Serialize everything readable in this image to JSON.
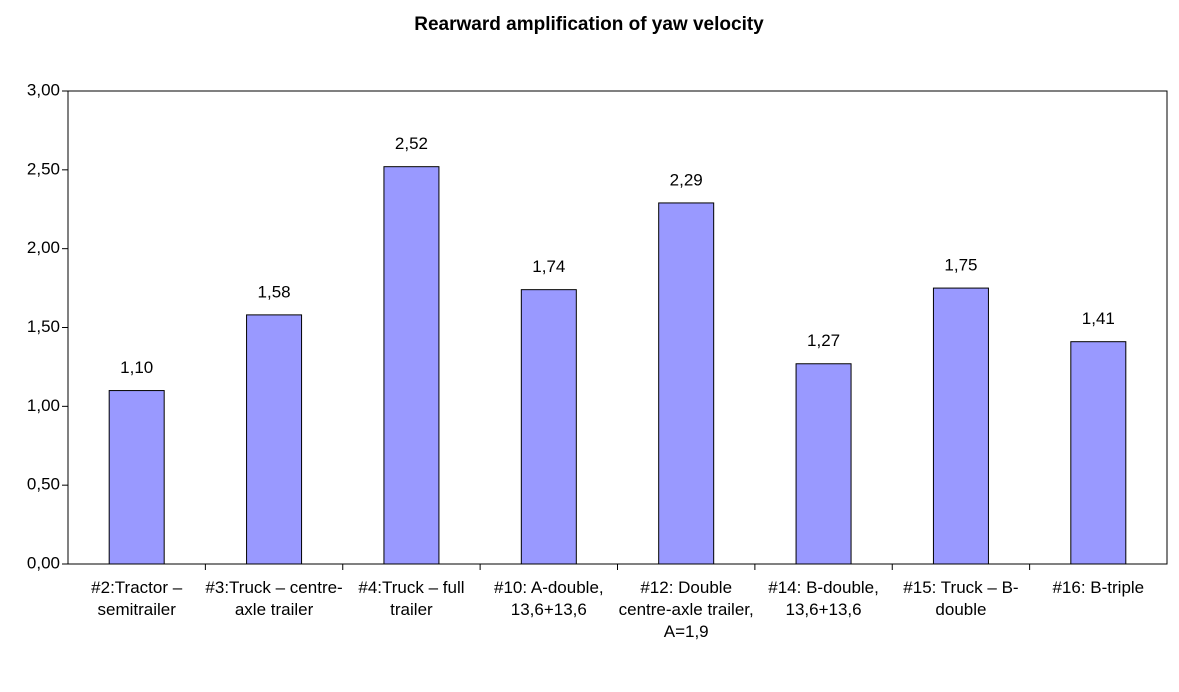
{
  "chart_data": {
    "type": "bar",
    "title": "Rearward amplification of yaw velocity",
    "categories": [
      "#2:Tractor – semitrailer",
      "#3:Truck – centre-axle trailer",
      "#4:Truck – full trailer",
      "#10: A-double, 13,6+13,6",
      "#12: Double centre-axle trailer, A=1,9",
      "#14: B-double, 13,6+13,6",
      "#15: Truck – B-double",
      "#16: B-triple"
    ],
    "values": [
      1.1,
      1.58,
      2.52,
      1.74,
      2.29,
      1.27,
      1.75,
      1.41
    ],
    "value_labels": [
      "1,10",
      "1,58",
      "2,52",
      "1,74",
      "2,29",
      "1,27",
      "1,75",
      "1,41"
    ],
    "color": "#9999ff",
    "ylim": [
      0,
      3
    ],
    "yticks": [
      {
        "value": 0,
        "label": "0,00"
      },
      {
        "value": 0.5,
        "label": "0,50"
      },
      {
        "value": 1,
        "label": "1,00"
      },
      {
        "value": 1.5,
        "label": "1,50"
      },
      {
        "value": 2,
        "label": "2,00"
      },
      {
        "value": 2.5,
        "label": "2,50"
      },
      {
        "value": 3,
        "label": "3,00"
      }
    ],
    "grid": false
  }
}
